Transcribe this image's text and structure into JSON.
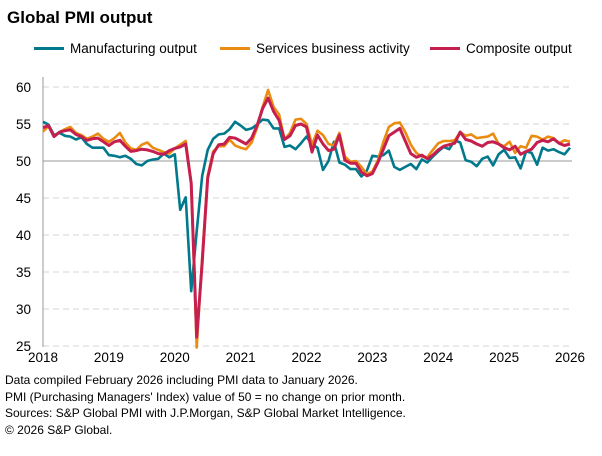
{
  "chart_data": {
    "type": "line",
    "title": "Global PMI output",
    "xlabel": "",
    "ylabel": "",
    "x_start": "2018-01",
    "frequency": "monthly",
    "x_ticks": [
      "2018",
      "2019",
      "2020",
      "2021",
      "2022",
      "2023",
      "2024",
      "2025",
      "2026"
    ],
    "y_ticks": [
      25,
      30,
      35,
      40,
      45,
      50,
      55,
      60
    ],
    "ylim": [
      25,
      60
    ],
    "reference_line": 50,
    "grid": "horizontal dashed",
    "legend_position": "top",
    "series": [
      {
        "name": "Manufacturing output",
        "color": "#00798c",
        "values": [
          55.3,
          54.9,
          53.5,
          53.8,
          53.4,
          53.3,
          52.9,
          53.2,
          52.3,
          51.8,
          51.8,
          51.8,
          50.8,
          50.7,
          50.5,
          50.7,
          50.3,
          49.6,
          49.4,
          50.0,
          50.2,
          50.3,
          51.0,
          50.5,
          50.9,
          43.4,
          45.1,
          32.4,
          40.5,
          48.0,
          51.5,
          53.0,
          53.6,
          53.7,
          54.3,
          55.3,
          54.8,
          54.2,
          54.4,
          54.9,
          55.6,
          55.5,
          54.4,
          54.4,
          51.9,
          52.1,
          51.6,
          52.4,
          53.3,
          52.2,
          51.8,
          48.8,
          50.0,
          52.6,
          49.8,
          49.5,
          48.9,
          48.9,
          47.9,
          48.7,
          50.7,
          50.6,
          50.8,
          51.4,
          49.2,
          48.8,
          49.2,
          49.6,
          48.9,
          50.2,
          49.8,
          50.6,
          51.3,
          51.9,
          51.6,
          52.8,
          52.5,
          50.1,
          49.9,
          49.3,
          50.3,
          50.6,
          49.4,
          50.9,
          51.5,
          50.4,
          50.5,
          49.0,
          51.3,
          51.1,
          49.5,
          51.8,
          51.4,
          51.6,
          51.2,
          50.9,
          51.8
        ]
      },
      {
        "name": "Services business activity",
        "color": "#ea8b12",
        "values": [
          54.0,
          54.7,
          53.3,
          53.9,
          54.3,
          54.6,
          53.8,
          53.5,
          53.0,
          53.3,
          53.7,
          53.0,
          52.6,
          53.1,
          53.8,
          52.5,
          51.7,
          51.5,
          52.2,
          52.5,
          51.8,
          51.5,
          51.2,
          51.0,
          51.7,
          52.2,
          52.7,
          47.0,
          24.8,
          37.0,
          48.0,
          51.3,
          52.0,
          52.0,
          52.9,
          52.1,
          51.8,
          51.6,
          52.5,
          54.5,
          57.3,
          59.6,
          57.3,
          56.3,
          52.9,
          53.8,
          55.6,
          55.7,
          55.0,
          52.2,
          54.1,
          53.5,
          52.3,
          52.1,
          53.8,
          50.6,
          49.9,
          50.0,
          49.2,
          48.2,
          48.6,
          50.1,
          52.6,
          54.6,
          55.1,
          55.2,
          53.9,
          52.2,
          51.1,
          50.6,
          50.5,
          51.5,
          52.4,
          52.7,
          52.7,
          52.8,
          53.9,
          53.4,
          53.6,
          53.1,
          53.2,
          53.3,
          53.7,
          52.3,
          52.0,
          52.6,
          51.1,
          52.0,
          51.8,
          53.4,
          53.3,
          52.9,
          53.3,
          53.1,
          52.4,
          52.8,
          52.6
        ]
      },
      {
        "name": "Composite output",
        "color": "#c41f4e",
        "values": [
          54.5,
          54.8,
          53.3,
          53.9,
          54.1,
          54.2,
          53.6,
          53.3,
          52.8,
          53.0,
          53.1,
          52.6,
          52.1,
          52.6,
          52.8,
          52.0,
          51.3,
          51.4,
          51.6,
          51.5,
          51.3,
          51.0,
          50.9,
          51.4,
          51.7,
          51.9,
          52.3,
          47.0,
          26.2,
          36.3,
          47.7,
          51.0,
          52.2,
          52.3,
          53.2,
          53.1,
          52.7,
          52.3,
          53.1,
          54.8,
          57.1,
          58.5,
          56.7,
          55.5,
          52.9,
          53.4,
          54.8,
          55.0,
          54.6,
          51.2,
          53.5,
          52.3,
          51.4,
          51.6,
          53.5,
          50.1,
          49.7,
          49.7,
          48.5,
          48.0,
          48.3,
          49.8,
          51.6,
          53.4,
          53.9,
          54.4,
          52.7,
          51.0,
          50.5,
          50.8,
          50.3,
          50.8,
          51.5,
          52.0,
          52.2,
          52.4,
          53.9,
          52.9,
          52.7,
          52.3,
          52.0,
          52.5,
          52.6,
          52.3,
          51.8,
          51.5,
          52.0,
          50.9,
          51.3,
          51.6,
          52.5,
          52.8,
          52.6,
          53.0,
          52.4,
          52.1,
          52.3
        ]
      }
    ]
  },
  "footer": {
    "line1": "Data compiled February 2026 including PMI data to January 2026.",
    "line2": "PMI (Purchasing Managers' Index) value of 50 = no change on prior month.",
    "line3": "Sources: S&P Global PMI with J.P.Morgan, S&P Global Market Intelligence.",
    "line4": "© 2026 S&P Global."
  }
}
